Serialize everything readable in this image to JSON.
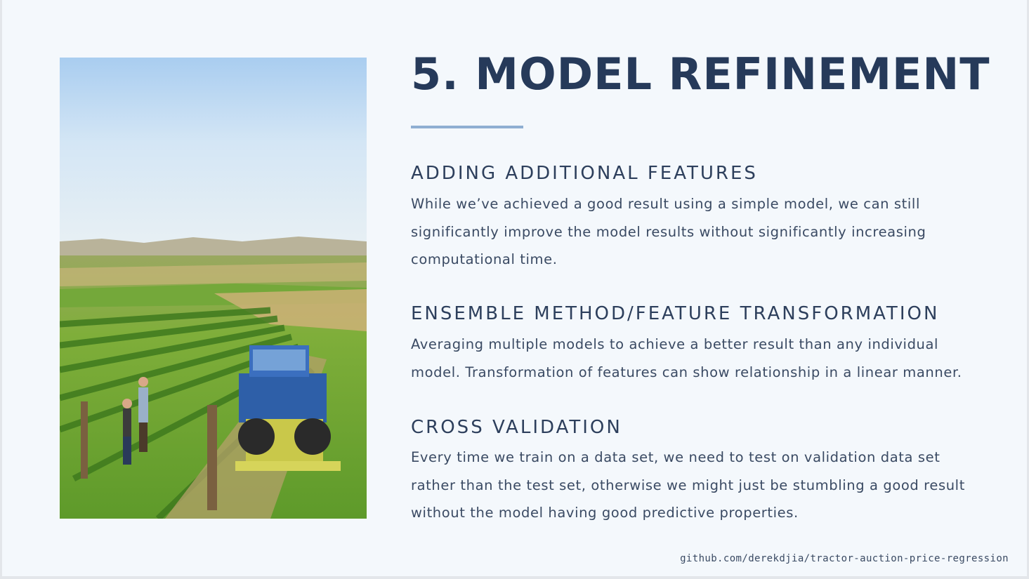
{
  "slide": {
    "title": "5. MODEL REFINEMENT",
    "photo": {
      "icon": "vineyard-tractor-photo"
    },
    "sections": [
      {
        "heading": "ADDING ADDITIONAL FEATURES",
        "body": "While we’ve achieved a good result using a simple model, we can still significantly improve the model results without significantly increasing computational time."
      },
      {
        "heading": "ENSEMBLE METHOD/FEATURE TRANSFORMATION",
        "body": "Averaging multiple models to achieve a better result than any individual model. Transformation of features can show relationship in a linear manner."
      },
      {
        "heading": "CROSS VALIDATION",
        "body": "Every time we train on a data set, we need to test on validation data set rather than the test set, otherwise we might just be stumbling a good result without the model having good predictive properties."
      }
    ],
    "footer": "github.com/derekdjia/tractor-auction-price-regression"
  },
  "colors": {
    "background": "#f4f8fc",
    "title": "#263a5a",
    "accent_rule": "#8fafd2",
    "body_text": "#3a4a63"
  }
}
